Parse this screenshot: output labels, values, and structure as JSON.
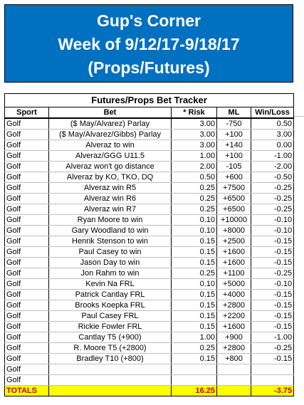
{
  "banner": {
    "line1": "Gup's Corner",
    "line2": "Week of 9/12/17-9/18/17",
    "line3": "(Props/Futures)"
  },
  "tracker": {
    "title": "Futures/Props Bet Tracker",
    "headers": {
      "sport": "Sport",
      "bet": "Bet",
      "risk": "* Risk",
      "ml": "ML",
      "winloss": "Win/Loss"
    },
    "rows": [
      {
        "sport": "Golf",
        "bet": "($ May/Alvarez) Parlay",
        "risk": "3.00",
        "ml": "-750",
        "wl": "0.50"
      },
      {
        "sport": "Golf",
        "bet": "($ May/Alvarez/Gibbs) Parlay",
        "risk": "3.00",
        "ml": "+100",
        "wl": "3.00"
      },
      {
        "sport": "Golf",
        "bet": "Alveraz to win",
        "risk": "3.00",
        "ml": "+140",
        "wl": "0.00"
      },
      {
        "sport": "Golf",
        "bet": "Alveraz/GGG U11.5",
        "risk": "1.00",
        "ml": "+100",
        "wl": "-1.00"
      },
      {
        "sport": "Golf",
        "bet": "Alveraz won't go distance",
        "risk": "2.00",
        "ml": "-105",
        "wl": "-2.00"
      },
      {
        "sport": "Golf",
        "bet": "Alveraz by KO, TKO, DQ",
        "risk": "0.50",
        "ml": "+600",
        "wl": "-0.50"
      },
      {
        "sport": "Golf",
        "bet": "Alveraz win R5",
        "risk": "0.25",
        "ml": "+7500",
        "wl": "-0.25"
      },
      {
        "sport": "Golf",
        "bet": "Alveraz win R6",
        "risk": "0.25",
        "ml": "+6500",
        "wl": "-0.25"
      },
      {
        "sport": "Golf",
        "bet": "Alveraz win R7",
        "risk": "0.25",
        "ml": "+6500",
        "wl": "-0.25"
      },
      {
        "sport": "Golf",
        "bet": "Ryan Moore to win",
        "risk": "0.10",
        "ml": "+10000",
        "wl": "-0.10"
      },
      {
        "sport": "Golf",
        "bet": "Gary Woodland to win",
        "risk": "0.10",
        "ml": "+8000",
        "wl": "-0.10"
      },
      {
        "sport": "Golf",
        "bet": "Henrik Stenson to win",
        "risk": "0.15",
        "ml": "+2500",
        "wl": "-0.15"
      },
      {
        "sport": "Golf",
        "bet": "Paul Casey to win",
        "risk": "0.15",
        "ml": "+1600",
        "wl": "-0.15"
      },
      {
        "sport": "Golf",
        "bet": "Jason Day to win",
        "risk": "0.15",
        "ml": "+1600",
        "wl": "-0.15"
      },
      {
        "sport": "Golf",
        "bet": "Jon Rahm to win",
        "risk": "0.25",
        "ml": "+1100",
        "wl": "-0.25"
      },
      {
        "sport": "Golf",
        "bet": "Kevin Na FRL",
        "risk": "0.10",
        "ml": "+5000",
        "wl": "-0.10"
      },
      {
        "sport": "Golf",
        "bet": "Patrick Cantlay FRL",
        "risk": "0.15",
        "ml": "+4000",
        "wl": "-0.15"
      },
      {
        "sport": "Golf",
        "bet": "Brooks Koepka FRL",
        "risk": "0.15",
        "ml": "+2800",
        "wl": "-0.15"
      },
      {
        "sport": "Golf",
        "bet": "Paul Casey FRL",
        "risk": "0.15",
        "ml": "+2200",
        "wl": "-0.15"
      },
      {
        "sport": "Golf",
        "bet": "Rickie Fowler FRL",
        "risk": "0.15",
        "ml": "+1600",
        "wl": "-0.15"
      },
      {
        "sport": "Golf",
        "bet": "Cantlay T5 (+900)",
        "risk": "1.00",
        "ml": "+900",
        "wl": "-1.00"
      },
      {
        "sport": "Golf",
        "bet": "R. Moore T5 (+2800)",
        "risk": "0.25",
        "ml": "+2800",
        "wl": "-0.25"
      },
      {
        "sport": "Golf",
        "bet": "Bradley T10 (+800)",
        "risk": "0.15",
        "ml": "+800",
        "wl": "-0.15"
      },
      {
        "sport": "Golf",
        "bet": "",
        "risk": "",
        "ml": "",
        "wl": ""
      },
      {
        "sport": "Golf",
        "bet": "",
        "risk": "",
        "ml": "",
        "wl": ""
      }
    ],
    "totals": {
      "label": "TOTALS",
      "risk": "16.25",
      "wl": "-3.75"
    }
  },
  "colors": {
    "banner_bg": "#0070c0",
    "banner_text": "#ffffff",
    "totals_bg": "#ffff00",
    "totals_text": "#c00000"
  }
}
